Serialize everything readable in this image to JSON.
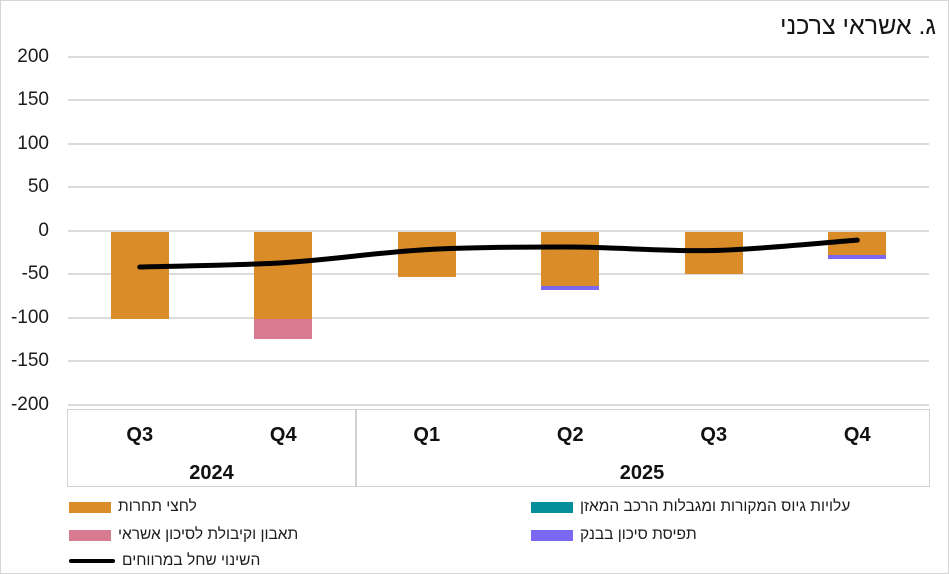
{
  "title": "ג. אשראי צרכני",
  "chart_data": {
    "type": "bar",
    "subtype": "stacked-bars-with-line-overlay",
    "title": "ג. אשראי צרכני",
    "categories": [
      "Q3",
      "Q4",
      "Q1",
      "Q2",
      "Q3",
      "Q4"
    ],
    "category_groups": [
      {
        "label": "2024",
        "start": 0,
        "count": 2
      },
      {
        "label": "2025",
        "start": 2,
        "count": 4
      }
    ],
    "ylim": [
      -200,
      200
    ],
    "y_ticks": [
      200,
      150,
      100,
      50,
      0,
      -50,
      -100,
      -150,
      -200
    ],
    "grid": true,
    "legend_position": "bottom",
    "bar_series": [
      {
        "name": "לחצי תחרות",
        "color": "#D98C28",
        "values": [
          -102,
          -102,
          -54,
          -64,
          -50,
          -28
        ]
      },
      {
        "name": "עלויות גיוס המקורות ומגבלות הרכב המאזן",
        "color": "#058E9C",
        "values": [
          0,
          0,
          0,
          0,
          0,
          0
        ]
      },
      {
        "name": "תאבון וקיבולת לסיכון אשראי",
        "color": "#D87B91",
        "values": [
          0,
          -23,
          0,
          0,
          0,
          0
        ]
      },
      {
        "name": "תפיסת סיכון בבנק",
        "color": "#7A68F0",
        "values": [
          0,
          0,
          0,
          -4,
          0,
          -5
        ]
      }
    ],
    "line_series": {
      "name": "השינוי שחל במרווחים",
      "color": "#000000",
      "values": [
        -42,
        -37,
        -22,
        -19,
        -23,
        -11
      ]
    }
  },
  "legend": {
    "left_column": [
      {
        "marker": "swatch",
        "color": "#D98C28",
        "label": "לחצי תחרות"
      },
      {
        "marker": "swatch",
        "color": "#D87B91",
        "label": "תאבון וקיבולת לסיכון אשראי"
      },
      {
        "marker": "line",
        "color": "#000000",
        "label": "השינוי שחל במרווחים"
      }
    ],
    "right_column": [
      {
        "marker": "swatch",
        "color": "#058E9C",
        "label": "עלויות גיוס המקורות ומגבלות הרכב המאזן"
      },
      {
        "marker": "swatch",
        "color": "#7A68F0",
        "label": "תפיסת סיכון בבנק"
      }
    ]
  }
}
